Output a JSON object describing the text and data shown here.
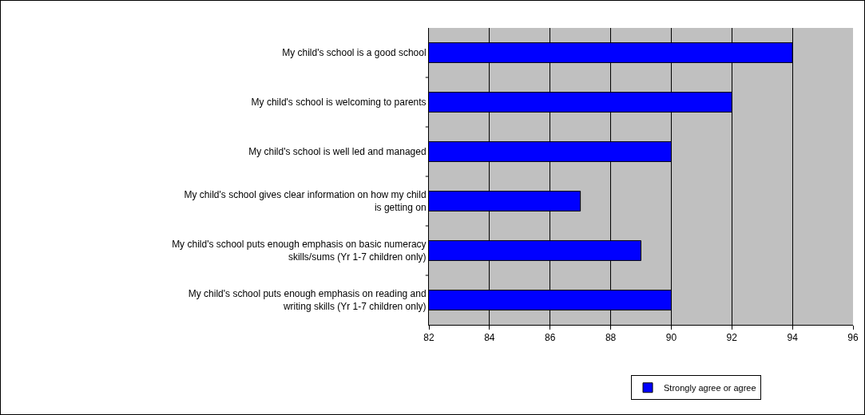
{
  "chart_data": {
    "type": "bar",
    "orientation": "horizontal",
    "categories": [
      "My child's school is a good school",
      "My child's school is welcoming to parents",
      "My child's school is well led and managed",
      "My child's school gives clear information on how my child is getting on",
      "My child's school puts enough emphasis on basic numeracy skills/sums (Yr 1-7 children only)",
      "My child's school puts enough emphasis on reading and writing skills (Yr 1-7 children only)"
    ],
    "series": [
      {
        "name": "Strongly agree or agree",
        "color": "#0000ff",
        "values": [
          94,
          92,
          90,
          87,
          89,
          90
        ]
      }
    ],
    "xlim": [
      82,
      96
    ],
    "xticks": [
      82,
      84,
      86,
      88,
      90,
      92,
      94,
      96
    ],
    "grid": "x",
    "legend": "bottom"
  }
}
